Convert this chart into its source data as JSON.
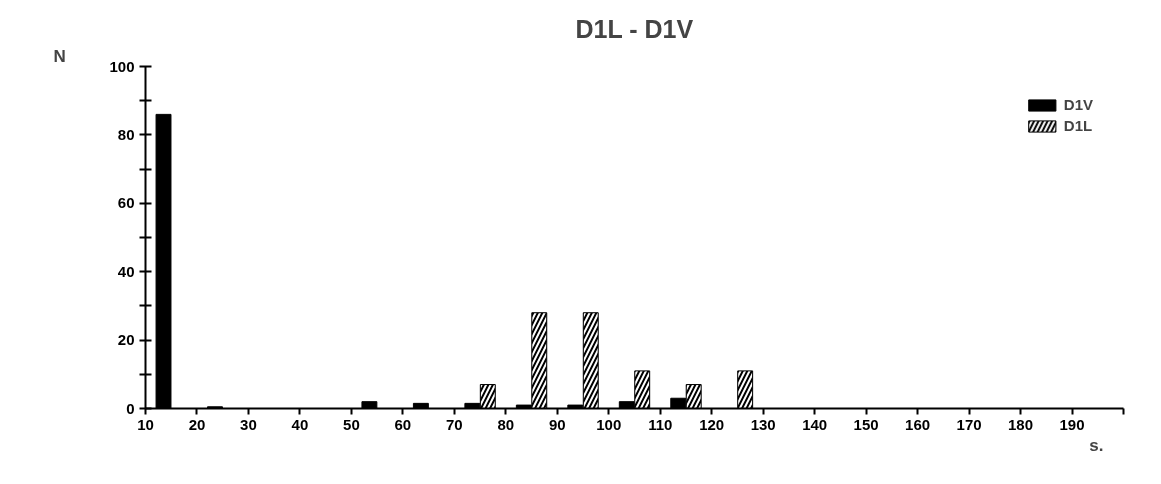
{
  "chart_data": {
    "type": "bar",
    "title": "D1L - D1V",
    "xlabel": "s.",
    "ylabel": "N",
    "series": [
      {
        "name": "D1V",
        "color": "#000000",
        "x": [
          13.5,
          23.5,
          33.5,
          43.5,
          53.5,
          63.5,
          73.5,
          83.5,
          93.5,
          103.5,
          113.5,
          123.5,
          133.5,
          143.5,
          153.5,
          163.5,
          173.5,
          183.5,
          193.5
        ],
        "values": [
          86,
          0.5,
          0,
          0,
          2,
          1.5,
          1.5,
          1,
          1,
          2,
          3,
          0,
          0,
          0,
          0,
          0,
          0,
          0,
          0
        ]
      },
      {
        "name": "D1L",
        "color": "#000000",
        "x": [
          16.5,
          26.5,
          36.5,
          46.5,
          56.5,
          66.5,
          76.5,
          86.5,
          96.5,
          106.5,
          116.5,
          126.5,
          136.5,
          146.5,
          156.5,
          166.5,
          176.5,
          186.5,
          196.5
        ],
        "values": [
          0,
          0,
          0,
          0,
          0,
          0,
          7,
          28,
          28,
          11,
          7,
          11,
          0,
          0,
          0,
          0,
          0,
          0,
          0
        ]
      }
    ],
    "xlim": [
      10,
      200
    ],
    "xticks": [
      10,
      20,
      30,
      40,
      50,
      60,
      70,
      80,
      90,
      100,
      110,
      120,
      130,
      140,
      150,
      160,
      170,
      180,
      190,
      {
        "value": 200,
        "label": null
      }
    ],
    "ylim": [
      0,
      100
    ],
    "yticks": [
      0,
      {
        "value": 10,
        "label": null
      },
      20,
      {
        "value": 30,
        "label": null
      },
      40,
      {
        "value": 50,
        "label": null
      },
      60,
      {
        "value": 70,
        "label": null
      },
      80,
      {
        "value": 90,
        "label": null
      },
      100
    ],
    "grid": false,
    "legend": "top right"
  }
}
